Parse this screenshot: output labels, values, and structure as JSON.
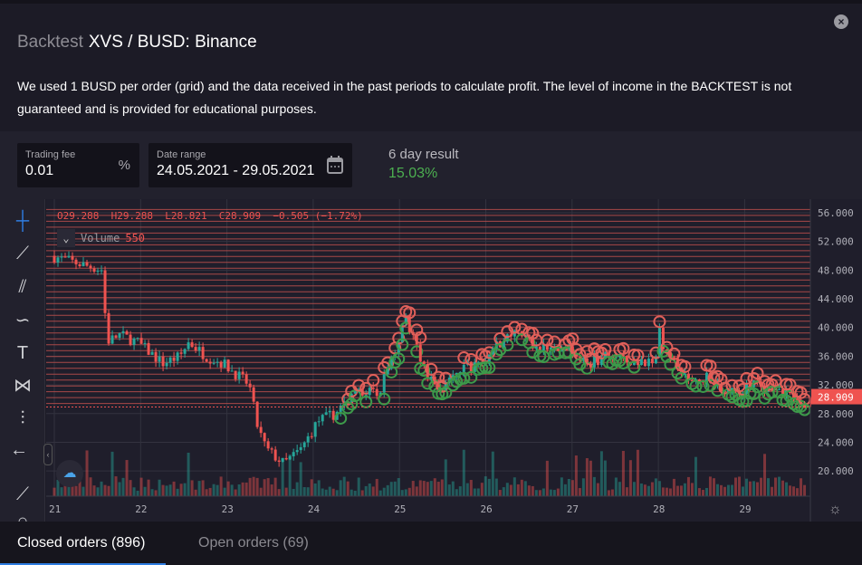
{
  "header": {
    "muted_title": "Backtest",
    "title": "XVS / BUSD: Binance",
    "description": "We used 1 BUSD per order (grid) and the data received in the past periods to calculate profit. The level of income in the BACKTEST is not guaranteed and is provided for educational purposes."
  },
  "settings": {
    "trading_fee_label": "Trading fee",
    "trading_fee_value": "0.01",
    "trading_fee_suffix": "%",
    "date_range_label": "Date range",
    "date_range_value": "24.05.2021 - 29.05.2021",
    "result_label": "6 day result",
    "result_value": "15.03%"
  },
  "legend": {
    "ohlc": "O29.288  H29.288  L28.821  C28.909  −0.505 (−1.72%)",
    "volume_label": "Volume",
    "volume_value": "550"
  },
  "tabs": [
    {
      "label": "Closed orders (896)",
      "active": true
    },
    {
      "label": "Open orders (69)",
      "active": false
    }
  ],
  "colors": {
    "up": "#26a69a",
    "down": "#ef5350",
    "buy": "#3d9a4a",
    "sell": "#e0605a",
    "grid_line": "#c0504d",
    "accent": "#2f7de1",
    "result": "#4caf50"
  },
  "toolbar_icons": [
    "crosshair-icon",
    "trendline-icon",
    "fib-icon",
    "brush-icon",
    "text-icon",
    "pattern-icon",
    "forecast-icon",
    "back-arrow-icon",
    "ruler-icon",
    "zoom-icon"
  ],
  "chart_data": {
    "type": "candlestick",
    "x_ticks": [
      "21",
      "22",
      "23",
      "24",
      "25",
      "26",
      "27",
      "28",
      "29"
    ],
    "y_ticks": [
      "56.000",
      "52.000",
      "48.000",
      "44.000",
      "40.000",
      "36.000",
      "32.000",
      "28.000",
      "24.000",
      "20.000"
    ],
    "ylim": [
      18.5,
      57.5
    ],
    "xlim": [
      20.95,
      29.8
    ],
    "last_price": "28.909",
    "price_path": [
      [
        21.0,
        50
      ],
      [
        21.3,
        49
      ],
      [
        21.6,
        48
      ],
      [
        21.65,
        38
      ],
      [
        21.8,
        39
      ],
      [
        22.0,
        38
      ],
      [
        22.3,
        35
      ],
      [
        22.5,
        36
      ],
      [
        22.6,
        38
      ],
      [
        22.8,
        36
      ],
      [
        23.0,
        35
      ],
      [
        23.3,
        32
      ],
      [
        23.4,
        26
      ],
      [
        23.5,
        23
      ],
      [
        23.7,
        21
      ],
      [
        23.9,
        23
      ],
      [
        24.1,
        27
      ],
      [
        24.3,
        28
      ],
      [
        24.5,
        31
      ],
      [
        24.8,
        31
      ],
      [
        25.0,
        37
      ],
      [
        25.1,
        42
      ],
      [
        25.3,
        35
      ],
      [
        25.5,
        31
      ],
      [
        25.7,
        34
      ],
      [
        26.0,
        35
      ],
      [
        26.2,
        38
      ],
      [
        26.4,
        39
      ],
      [
        26.7,
        37
      ],
      [
        27.0,
        37
      ],
      [
        27.2,
        35
      ],
      [
        27.5,
        36
      ],
      [
        27.7,
        35
      ],
      [
        28.0,
        35
      ],
      [
        28.05,
        40
      ],
      [
        28.1,
        37
      ],
      [
        28.4,
        32
      ],
      [
        28.6,
        33
      ],
      [
        28.9,
        31
      ],
      [
        29.2,
        32
      ],
      [
        29.5,
        31
      ],
      [
        29.7,
        28.9
      ]
    ],
    "grid_levels_range": [
      29.4,
      57.2
    ],
    "trades_start": 24.3
  }
}
